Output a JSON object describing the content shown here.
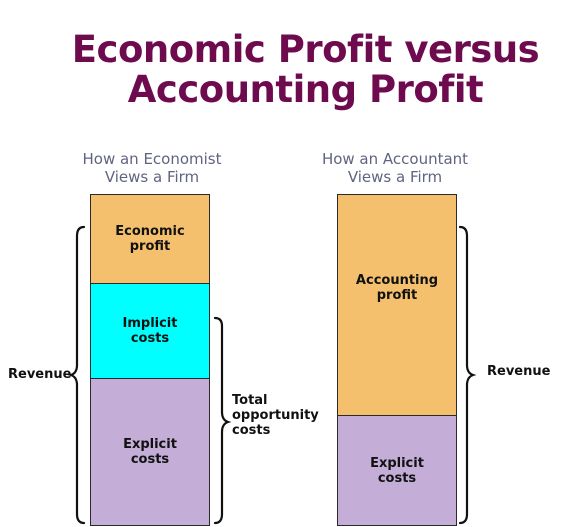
{
  "title": {
    "line1": "Economic Profit versus",
    "line2": "Accounting Profit"
  },
  "economist": {
    "heading_line1": "How an Economist",
    "heading_line2": "Views a Firm",
    "segments": {
      "economic_profit": [
        "Economic",
        "profit"
      ],
      "implicit_costs": [
        "Implicit",
        "costs"
      ],
      "explicit_costs": [
        "Explicit",
        "costs"
      ]
    },
    "revenue_label": "Revenue",
    "total_costs_label": [
      "Total",
      "opportunity",
      "costs"
    ]
  },
  "accountant": {
    "heading_line1": "How an Accountant",
    "heading_line2": "Views a Firm",
    "segments": {
      "accounting_profit": [
        "Accounting",
        "profit"
      ],
      "explicit_costs": [
        "Explicit",
        "costs"
      ]
    },
    "revenue_label": "Revenue"
  },
  "colors": {
    "title": "#6e0a4e",
    "heading": "#606480",
    "profit": "#f4c06e",
    "implicit": "#00ffff",
    "explicit": "#c4aed8"
  }
}
